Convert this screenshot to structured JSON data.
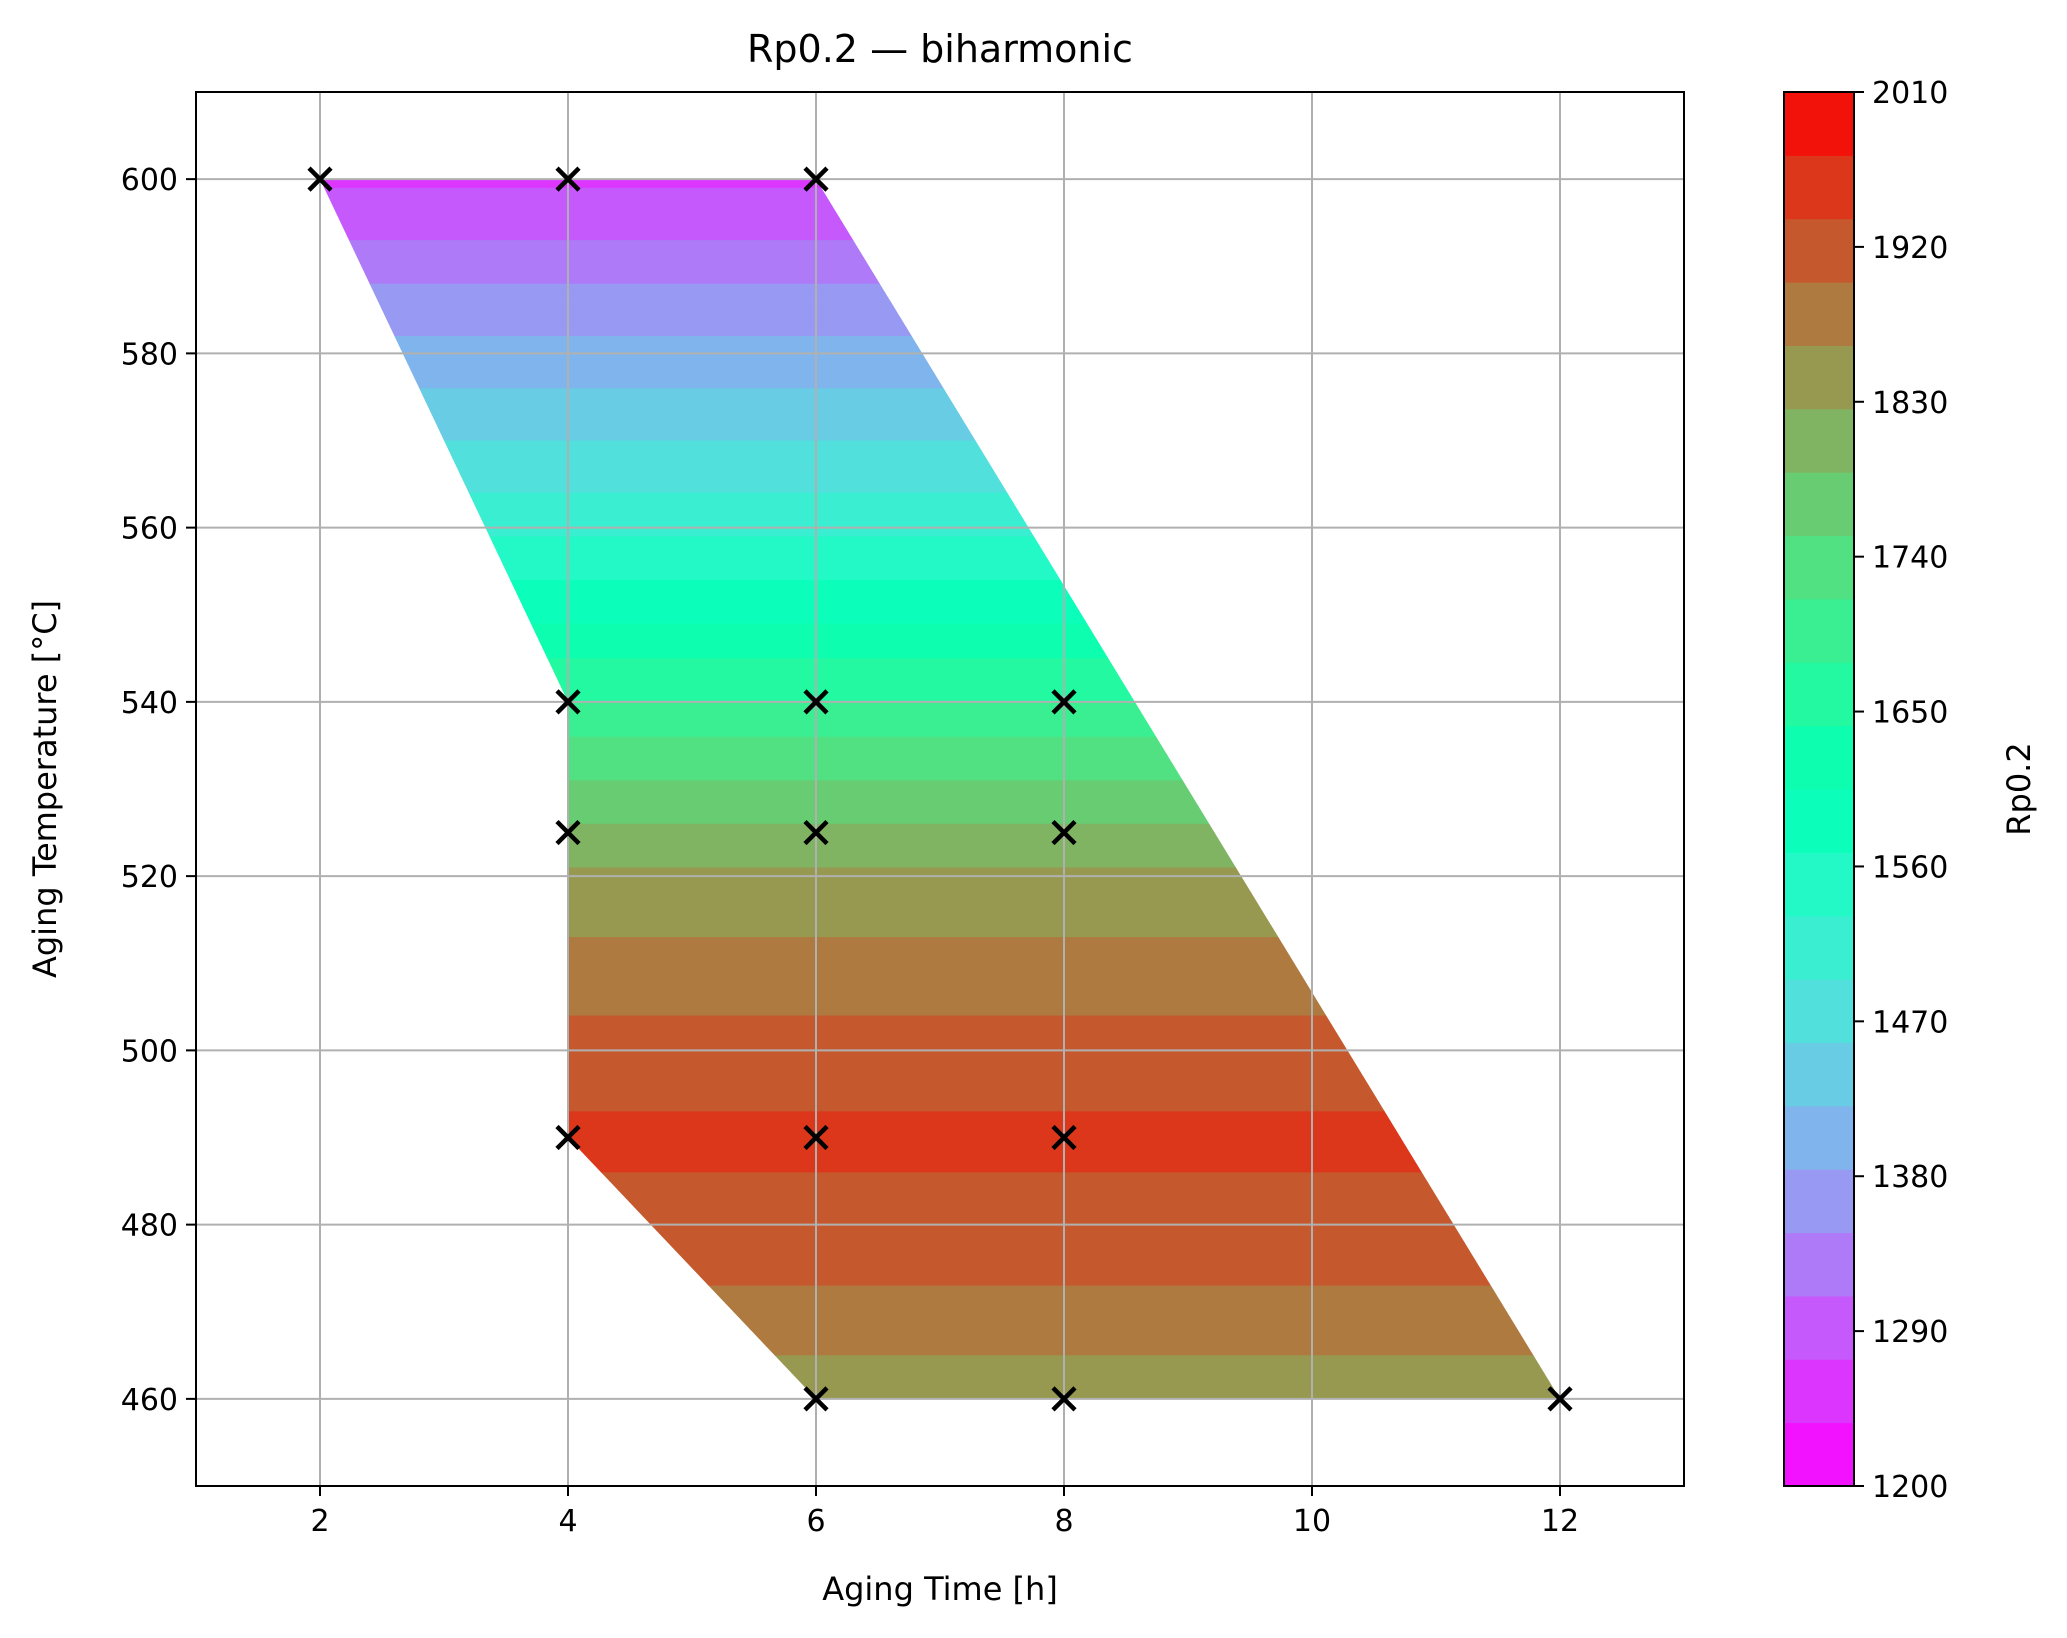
{
  "chart_data": {
    "type": "contour",
    "title": "Rp0.2 — biharmonic",
    "xlabel": "Aging Time [h]",
    "ylabel": "Aging Temperature [°C]",
    "colorbar_label": "Rp0.2",
    "xlim": [
      1,
      13
    ],
    "ylim": [
      450,
      610
    ],
    "x_ticks": [
      2,
      4,
      6,
      8,
      10,
      12
    ],
    "x_tick_labels": [
      "2",
      "4",
      "6",
      "8",
      "10",
      "12"
    ],
    "y_ticks": [
      460,
      480,
      500,
      520,
      540,
      560,
      580,
      600
    ],
    "y_tick_labels": [
      "460",
      "480",
      "500",
      "520",
      "540",
      "560",
      "580",
      "600"
    ],
    "colorbar_range": [
      1200,
      2010
    ],
    "colorbar_ticks": [
      1200,
      1290,
      1380,
      1470,
      1560,
      1650,
      1740,
      1830,
      1920,
      2010
    ],
    "colorbar_tick_labels": [
      "1200",
      "1290",
      "1380",
      "1470",
      "1560",
      "1650",
      "1740",
      "1830",
      "1920",
      "2010"
    ],
    "colormap": "rainbow",
    "grid": true,
    "domain_polygon": [
      {
        "x": 2,
        "y": 600
      },
      {
        "x": 6,
        "y": 600
      },
      {
        "x": 12,
        "y": 460
      },
      {
        "x": 6,
        "y": 460
      },
      {
        "x": 4,
        "y": 490
      },
      {
        "x": 4,
        "y": 540
      }
    ],
    "sample_points": [
      {
        "x": 2,
        "y": 600
      },
      {
        "x": 4,
        "y": 600
      },
      {
        "x": 6,
        "y": 600
      },
      {
        "x": 4,
        "y": 540
      },
      {
        "x": 6,
        "y": 540
      },
      {
        "x": 8,
        "y": 540
      },
      {
        "x": 4,
        "y": 525
      },
      {
        "x": 6,
        "y": 525
      },
      {
        "x": 8,
        "y": 525
      },
      {
        "x": 4,
        "y": 490
      },
      {
        "x": 6,
        "y": 490
      },
      {
        "x": 8,
        "y": 490
      },
      {
        "x": 6,
        "y": 460
      },
      {
        "x": 8,
        "y": 460
      },
      {
        "x": 12,
        "y": 460
      }
    ],
    "value_profile": [
      {
        "temp": 600,
        "value": 1265
      },
      {
        "temp": 590,
        "value": 1330
      },
      {
        "temp": 580,
        "value": 1400
      },
      {
        "temp": 570,
        "value": 1455
      },
      {
        "temp": 560,
        "value": 1525
      },
      {
        "temp": 550,
        "value": 1600
      },
      {
        "temp": 540,
        "value": 1680
      },
      {
        "temp": 530,
        "value": 1760
      },
      {
        "temp": 520,
        "value": 1830
      },
      {
        "temp": 510,
        "value": 1875
      },
      {
        "temp": 500,
        "value": 1915
      },
      {
        "temp": 490,
        "value": 1945
      },
      {
        "temp": 480,
        "value": 1925
      },
      {
        "temp": 470,
        "value": 1890
      },
      {
        "temp": 460,
        "value": 1830
      }
    ]
  }
}
